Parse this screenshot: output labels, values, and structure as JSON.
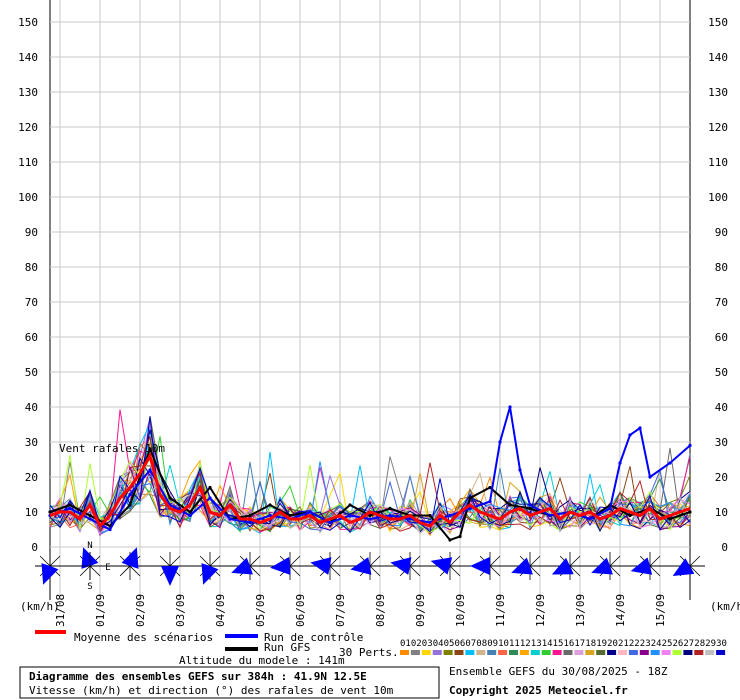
{
  "chart_data": {
    "type": "line",
    "ylim": [
      0,
      150
    ],
    "yticks": [
      0,
      10,
      20,
      30,
      40,
      50,
      60,
      70,
      80,
      90,
      100,
      110,
      120,
      130,
      140,
      150
    ],
    "xlim": [
      0,
      384
    ],
    "date_labels": [
      "31/08",
      "01/09",
      "02/09",
      "03/09",
      "04/09",
      "05/09",
      "06/09",
      "07/09",
      "08/09",
      "09/09",
      "10/09",
      "11/09",
      "12/09",
      "13/09",
      "14/09",
      "15/09"
    ],
    "unit_label": "(km/h)",
    "inline_label": "Vent rafales 10m",
    "series": [
      {
        "name": "Moyenne des scénarios",
        "color": "#ff0000",
        "x": [
          0,
          6,
          12,
          18,
          24,
          30,
          36,
          42,
          48,
          54,
          60,
          66,
          72,
          78,
          84,
          90,
          96,
          102,
          108,
          114,
          120,
          126,
          132,
          138,
          144,
          150,
          156,
          162,
          168,
          174,
          180,
          186,
          192,
          198,
          204,
          210,
          216,
          222,
          228,
          234,
          240,
          246,
          252,
          258,
          264,
          270,
          276,
          282,
          288,
          294,
          300,
          306,
          312,
          318,
          324,
          330,
          336,
          342,
          348,
          354,
          360,
          366,
          372,
          378,
          384
        ],
        "y": [
          9,
          10,
          10,
          8,
          12,
          6,
          9,
          14,
          17,
          21,
          26,
          15,
          11,
          10,
          12,
          17,
          10,
          9,
          12,
          8,
          8,
          7,
          8,
          10,
          8,
          8,
          9,
          7,
          8,
          9,
          7,
          8,
          10,
          9,
          8,
          8,
          9,
          7,
          6,
          9,
          7,
          10,
          12,
          10,
          9,
          8,
          10,
          11,
          9,
          10,
          11,
          8,
          10,
          9,
          10,
          8,
          9,
          11,
          10,
          9,
          11,
          8,
          9,
          10,
          11
        ]
      },
      {
        "name": "Run de contrôle",
        "color": "#0000ff",
        "x": [
          0,
          12,
          24,
          36,
          48,
          60,
          72,
          84,
          96,
          108,
          120,
          132,
          144,
          156,
          168,
          180,
          192,
          204,
          216,
          228,
          240,
          252,
          264,
          270,
          276,
          282,
          288,
          300,
          312,
          324,
          336,
          342,
          348,
          354,
          360,
          372,
          384
        ],
        "y": [
          9,
          11,
          8,
          5,
          15,
          22,
          12,
          9,
          14,
          8,
          7,
          9,
          8,
          10,
          7,
          9,
          8,
          9,
          8,
          7,
          9,
          11,
          13,
          30,
          40,
          22,
          12,
          9,
          10,
          8,
          11,
          24,
          32,
          34,
          20,
          24,
          29
        ]
      },
      {
        "name": "Run GFS",
        "color": "#000000",
        "x": [
          0,
          12,
          24,
          36,
          48,
          60,
          72,
          84,
          96,
          108,
          120,
          132,
          144,
          156,
          168,
          180,
          192,
          204,
          216,
          228,
          240,
          246,
          252,
          264,
          276,
          288,
          300,
          312,
          324,
          336,
          348,
          360,
          372,
          384
        ],
        "y": [
          10,
          12,
          9,
          6,
          12,
          28,
          14,
          10,
          17,
          8,
          9,
          12,
          9,
          10,
          7,
          12,
          9,
          11,
          9,
          9,
          2,
          3,
          14,
          17,
          12,
          11,
          9,
          10,
          8,
          12,
          9,
          11,
          8,
          10
        ]
      }
    ],
    "perturbations_label": "30 Perts.",
    "perturbation_numbers": [
      "01",
      "02",
      "03",
      "04",
      "05",
      "06",
      "07",
      "08",
      "09",
      "10",
      "11",
      "12",
      "13",
      "14",
      "15",
      "16",
      "17",
      "18",
      "19",
      "20",
      "21",
      "22",
      "23",
      "24",
      "25",
      "26",
      "27",
      "28",
      "29",
      "30"
    ],
    "perturbation_colors": [
      "#ff8c00",
      "#808080",
      "#ffd700",
      "#9370db",
      "#808000",
      "#8b4513",
      "#00bfff",
      "#d2b48c",
      "#4682b4",
      "#ff6347",
      "#2e8b57",
      "#ffa500",
      "#00ced1",
      "#32cd32",
      "#ff1493",
      "#696969",
      "#dda0dd",
      "#daa520",
      "#556b2f",
      "#00008b",
      "#ffb6c1",
      "#4169e1",
      "#8b008b",
      "#1e90ff",
      "#ee82ee",
      "#adff2f",
      "#000080",
      "#b22222",
      "#c0c0c0",
      "#0000cd"
    ],
    "wind_directions_deg": [
      200,
      340,
      20,
      180,
      200,
      250,
      265,
      280,
      260,
      280,
      285,
      270,
      250,
      245,
      250,
      255,
      240
    ],
    "compass": [
      "N",
      "E",
      "S"
    ]
  },
  "legend": {
    "mean": "Moyenne des scénarios",
    "control": "Run de contrôle",
    "gfs": "Run GFS",
    "altitude": "Altitude du modele : 141m"
  },
  "footer": {
    "title": "Diagramme des ensembles GEFS sur 384h : 41.9N 12.5E",
    "subtitle": "Vitesse (km/h) et direction (°) des rafales de vent 10m",
    "run_info": "Ensemble GEFS du 30/08/2025 - 18Z",
    "copyright": "Copyright 2025 Meteociel.fr"
  }
}
